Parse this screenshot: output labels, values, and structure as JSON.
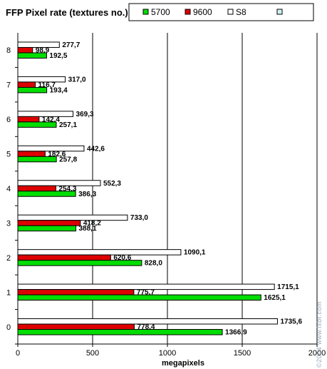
{
  "chart_data": {
    "type": "bar",
    "orientation": "horizontal",
    "title": "FFP Pixel rate (textures no.)",
    "xlabel": "megapixels",
    "ylabel": "",
    "xlim": [
      0,
      2000
    ],
    "xticks": [
      0,
      500,
      1000,
      1500,
      2000
    ],
    "grid": true,
    "legend_position": "top-right",
    "categories": [
      "0",
      "1",
      "2",
      "3",
      "4",
      "5",
      "6",
      "7",
      "8"
    ],
    "series": [
      {
        "name": "5700",
        "color": "#00dd00",
        "values": [
          1366.9,
          1625.1,
          828.0,
          388.1,
          386.3,
          257.8,
          257.1,
          193.4,
          192.5
        ]
      },
      {
        "name": "9600",
        "color": "#dd0000",
        "values": [
          778.4,
          775.7,
          620.6,
          418.2,
          254.3,
          182.6,
          142.4,
          116.7,
          98.9
        ]
      },
      {
        "name": "S8",
        "color": "#ffffff",
        "values": [
          1735.6,
          1715.1,
          1090.1,
          733.0,
          552.3,
          442.6,
          369.3,
          317.0,
          277.7
        ]
      }
    ],
    "legend_extra_swatch_color": "#cff4f8",
    "watermark": "©2004 www.ixbt.com"
  }
}
